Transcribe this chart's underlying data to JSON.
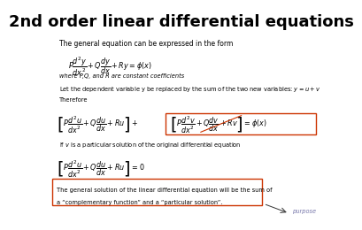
{
  "title": "2nd order linear differential equations",
  "bg_color": "#ffffff",
  "text_color": "#000000",
  "box_color": "#cc3300",
  "line1": "The general equation can be expressed in the form",
  "eq1": "$P\\dfrac{d^{2}y}{dx^{2}}+Q\\dfrac{dy}{dx}+Ry=\\phi(x)$",
  "line2": "where P,Q, and R are constant coefficients",
  "line3": "Let the dependent variable y be replaced by the sum of the two new variables: $y = u + v$",
  "line4": "Therefore",
  "eq2a": "$\\left[P\\dfrac{d^{2}u}{dx^{2}}+Q\\dfrac{du}{dx}+Ru\\right]+$",
  "eq2b": "$\\left[P\\dfrac{d^{2}v}{dx^{2}}+Q\\dfrac{dv}{dx}+Rv\\right]=\\phi(x)$",
  "line5": "If $v$ is a particular solution of the original differential equation",
  "eq3": "$\\left[P\\dfrac{d^{2}u}{dx^{2}}+Q\\dfrac{du}{dx}+Ru\\right]=0$",
  "line6": "The general solution of the linear differential equation will be the sum of",
  "line7": "a “complementary function” and a “particular solution”.",
  "annotation": "purpose",
  "title_fontsize": 13,
  "body_fontsize": 5.5,
  "eq_fontsize": 5.8,
  "small_fontsize": 4.8
}
